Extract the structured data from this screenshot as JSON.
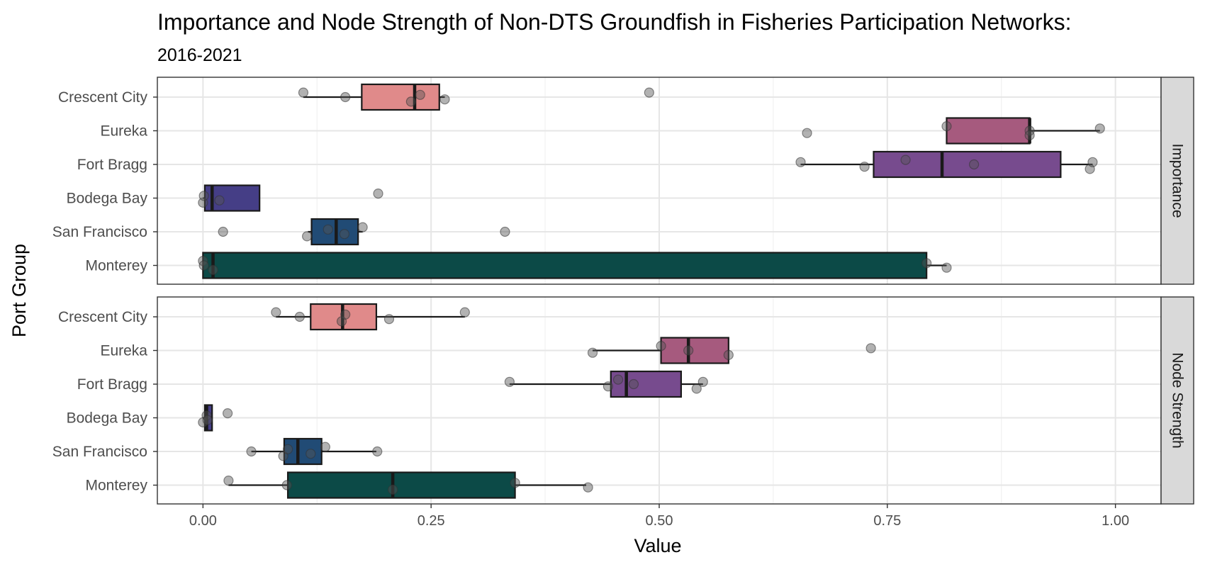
{
  "chart_data": {
    "type": "boxplot",
    "title": "Importance and Node Strength of Non-DTS Groundfish in Fisheries Participation Networks:",
    "subtitle": "2016-2021",
    "xlabel": "Value",
    "ylabel": "Port Group",
    "xlim": [
      -0.05,
      1.05
    ],
    "xticks": [
      "0.00",
      "0.25",
      "0.50",
      "0.75",
      "1.00"
    ],
    "categories": [
      "Crescent City",
      "Eureka",
      "Fort Bragg",
      "Bodega Bay",
      "San Francisco",
      "Monterey"
    ],
    "colors": {
      "Crescent City": "#e08a8a",
      "Eureka": "#a65a7e",
      "Fort Bragg": "#774b8e",
      "Bodega Bay": "#453e86",
      "San Francisco": "#214b75",
      "Monterey": "#0c4a47"
    },
    "panels": [
      {
        "label": "Importance",
        "boxes": [
          {
            "group": "Crescent City",
            "whisker_low": 0.11,
            "q1": 0.174,
            "median": 0.232,
            "q3": 0.259,
            "whisker_high": 0.265,
            "points": [
              0.11,
              0.156,
              0.228,
              0.238,
              0.265,
              0.489
            ]
          },
          {
            "group": "Eureka",
            "whisker_low": 0.815,
            "q1": 0.815,
            "median": 0.906,
            "q3": 0.906,
            "whisker_high": 0.983,
            "points": [
              0.662,
              0.815,
              0.906,
              0.906,
              0.983
            ]
          },
          {
            "group": "Fort Bragg",
            "whisker_low": 0.655,
            "q1": 0.735,
            "median": 0.81,
            "q3": 0.94,
            "whisker_high": 0.975,
            "points": [
              0.655,
              0.725,
              0.77,
              0.845,
              0.972,
              0.975
            ]
          },
          {
            "group": "Bodega Bay",
            "whisker_low": 0.0,
            "q1": 0.002,
            "median": 0.01,
            "q3": 0.062,
            "whisker_high": 0.062,
            "points": [
              0.0,
              0.001,
              0.018,
              0.192
            ]
          },
          {
            "group": "San Francisco",
            "whisker_low": 0.115,
            "q1": 0.119,
            "median": 0.146,
            "q3": 0.17,
            "whisker_high": 0.175,
            "points": [
              0.022,
              0.114,
              0.137,
              0.155,
              0.175,
              0.331
            ]
          },
          {
            "group": "Monterey",
            "whisker_low": 0.0,
            "q1": 0.0,
            "median": 0.011,
            "q3": 0.793,
            "whisker_high": 0.815,
            "points": [
              0.0,
              0.001,
              0.011,
              0.793,
              0.815
            ]
          }
        ]
      },
      {
        "label": "Node Strength",
        "boxes": [
          {
            "group": "Crescent City",
            "whisker_low": 0.08,
            "q1": 0.118,
            "median": 0.153,
            "q3": 0.19,
            "whisker_high": 0.287,
            "points": [
              0.08,
              0.106,
              0.152,
              0.156,
              0.204,
              0.287
            ]
          },
          {
            "group": "Eureka",
            "whisker_low": 0.427,
            "q1": 0.502,
            "median": 0.532,
            "q3": 0.576,
            "whisker_high": 0.576,
            "points": [
              0.427,
              0.502,
              0.532,
              0.576,
              0.732
            ]
          },
          {
            "group": "Fort Bragg",
            "whisker_low": 0.336,
            "q1": 0.447,
            "median": 0.464,
            "q3": 0.524,
            "whisker_high": 0.548,
            "points": [
              0.336,
              0.444,
              0.455,
              0.472,
              0.541,
              0.548
            ]
          },
          {
            "group": "Bodega Bay",
            "whisker_low": 0.0,
            "q1": 0.002,
            "median": 0.004,
            "q3": 0.01,
            "whisker_high": 0.01,
            "points": [
              0.0,
              0.004,
              0.005,
              0.027
            ]
          },
          {
            "group": "San Francisco",
            "whisker_low": 0.053,
            "q1": 0.089,
            "median": 0.104,
            "q3": 0.13,
            "whisker_high": 0.19,
            "points": [
              0.053,
              0.088,
              0.093,
              0.118,
              0.134,
              0.191
            ]
          },
          {
            "group": "Monterey",
            "whisker_low": 0.028,
            "q1": 0.093,
            "median": 0.208,
            "q3": 0.342,
            "whisker_high": 0.42,
            "points": [
              0.028,
              0.092,
              0.208,
              0.342,
              0.422
            ]
          }
        ]
      }
    ]
  }
}
